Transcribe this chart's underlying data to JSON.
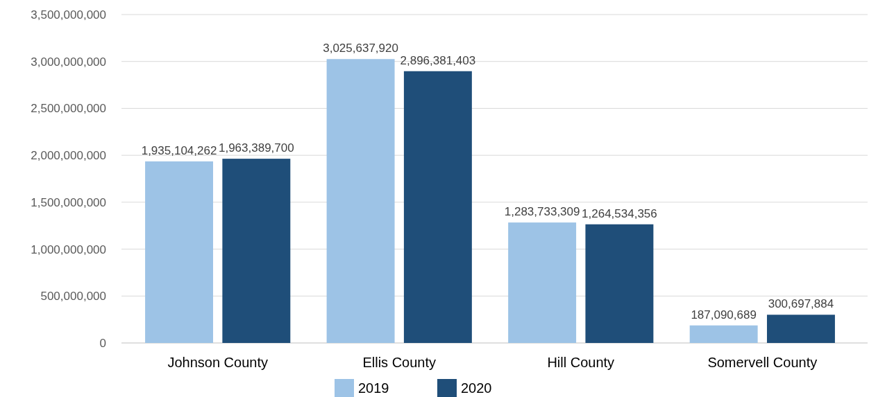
{
  "chart_data": {
    "type": "bar",
    "categories": [
      "Johnson County",
      "Ellis County",
      "Hill County",
      "Somervell County"
    ],
    "series": [
      {
        "name": "2019",
        "color": "#9dc3e6",
        "values": [
          1935104262,
          3025637920,
          1283733309,
          187090689
        ],
        "value_labels": [
          "1,935,104,262",
          "3,025,637,920",
          "1,283,733,309",
          "187,090,689"
        ]
      },
      {
        "name": "2020",
        "color": "#1f4e79",
        "values": [
          1963389700,
          2896381403,
          1264534356,
          300697884
        ],
        "value_labels": [
          "1,963,389,700",
          "2,896,381,403",
          "1,264,534,356",
          "300,697,884"
        ]
      }
    ],
    "ylim": [
      0,
      3500000000
    ],
    "yticks": [
      {
        "value": 0,
        "label": "0"
      },
      {
        "value": 500000000,
        "label": "500,000,000"
      },
      {
        "value": 1000000000,
        "label": "1,000,000,000"
      },
      {
        "value": 1500000000,
        "label": "1,500,000,000"
      },
      {
        "value": 2000000000,
        "label": "2,000,000,000"
      },
      {
        "value": 2500000000,
        "label": "2,500,000,000"
      },
      {
        "value": 3000000000,
        "label": "3,000,000,000"
      },
      {
        "value": 3500000000,
        "label": "3,500,000,000"
      }
    ],
    "grid": "y",
    "legend": "bottom"
  }
}
